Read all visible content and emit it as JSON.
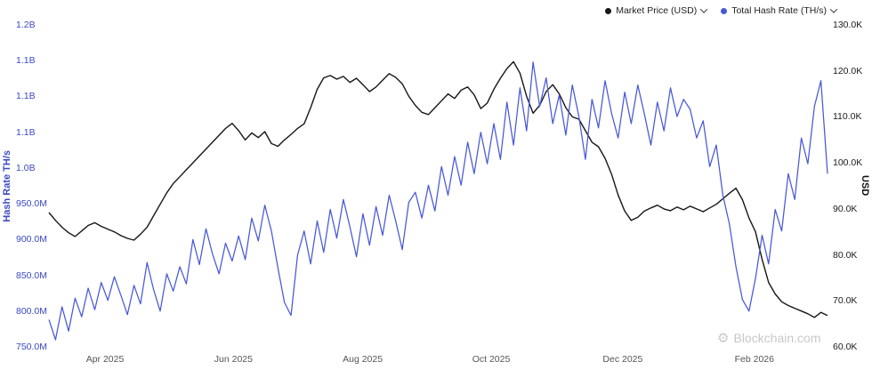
{
  "legend": {
    "market": {
      "label": "Market Price (USD)",
      "color": "#161616"
    },
    "hash": {
      "label": "Total Hash Rate (TH/s)",
      "color": "#4758d8"
    }
  },
  "watermark": {
    "icon": "⚙",
    "text": "Blockchain.com"
  },
  "chart_data": {
    "type": "line",
    "title": "",
    "grid": false,
    "legend_position": "top-right",
    "left_axis": {
      "title": "Hash Rate TH/s",
      "unit": "TH/s",
      "range": [
        750,
        1200
      ],
      "ticks": [
        {
          "label": "1.2B",
          "value": 1200
        },
        {
          "label": "1.1B",
          "value": 1150
        },
        {
          "label": "1.1B",
          "value": 1100
        },
        {
          "label": "1.1B",
          "value": 1050
        },
        {
          "label": "1.0B",
          "value": 1000
        },
        {
          "label": "950.0M",
          "value": 950
        },
        {
          "label": "900.0M",
          "value": 900
        },
        {
          "label": "850.0M",
          "value": 850
        },
        {
          "label": "800.0M",
          "value": 800
        },
        {
          "label": "750.0M",
          "value": 750
        }
      ]
    },
    "right_axis": {
      "title": "USD",
      "unit": "USD",
      "range": [
        60,
        130
      ],
      "ticks": [
        {
          "label": "130.0K",
          "value": 130
        },
        {
          "label": "120.0K",
          "value": 120
        },
        {
          "label": "110.0K",
          "value": 110
        },
        {
          "label": "100.0K",
          "value": 100
        },
        {
          "label": "90.0K",
          "value": 90
        },
        {
          "label": "80.0K",
          "value": 80
        },
        {
          "label": "70.0K",
          "value": 70
        },
        {
          "label": "60.0K",
          "value": 60
        }
      ]
    },
    "x_axis": {
      "start": "Mar 2025",
      "end": "Mar 2026",
      "ticks": [
        {
          "label": "Apr 2025",
          "pos": 0.072
        },
        {
          "label": "Jun 2025",
          "pos": 0.237
        },
        {
          "label": "Aug 2025",
          "pos": 0.403
        },
        {
          "label": "Oct 2025",
          "pos": 0.568
        },
        {
          "label": "Dec 2025",
          "pos": 0.737
        },
        {
          "label": "Feb 2026",
          "pos": 0.906
        }
      ]
    },
    "series": [
      {
        "name": "Market Price (USD)",
        "data_name": "market-price-line",
        "axis": "right",
        "color": "#161616",
        "width": 1.4,
        "values": [
          89.2,
          87.5,
          86.0,
          84.8,
          84.0,
          85.2,
          86.4,
          87.0,
          86.2,
          85.6,
          85.0,
          84.2,
          83.6,
          83.2,
          84.5,
          86.0,
          88.5,
          91.0,
          93.5,
          95.5,
          97.0,
          98.5,
          100.0,
          101.5,
          103.0,
          104.5,
          106.0,
          107.5,
          108.6,
          107.0,
          105.0,
          106.5,
          105.5,
          106.8,
          104.2,
          103.6,
          105.0,
          106.2,
          107.5,
          108.5,
          112.0,
          116.0,
          118.5,
          119.0,
          118.2,
          118.8,
          117.5,
          118.4,
          117.0,
          115.5,
          116.5,
          118.0,
          119.4,
          118.6,
          117.2,
          114.5,
          112.5,
          111.0,
          110.5,
          112.0,
          113.5,
          115.0,
          114.0,
          115.8,
          116.5,
          114.8,
          111.8,
          113.0,
          116.0,
          118.4,
          120.5,
          122.0,
          119.5,
          114.5,
          110.8,
          112.5,
          115.5,
          117.0,
          115.0,
          112.0,
          110.0,
          109.5,
          107.0,
          104.5,
          103.5,
          101.0,
          97.5,
          93.0,
          89.5,
          87.5,
          88.2,
          89.5,
          90.2,
          90.8,
          90.0,
          89.6,
          90.4,
          89.8,
          90.6,
          90.0,
          89.4,
          90.2,
          91.0,
          92.2,
          93.4,
          94.5,
          92.0,
          88.0,
          85.0,
          79.0,
          74.0,
          71.5,
          69.8,
          69.0,
          68.4,
          67.8,
          67.2,
          66.4,
          67.5,
          66.8
        ]
      },
      {
        "name": "Total Hash Rate (TH/s)",
        "data_name": "hash-rate-line",
        "axis": "left",
        "color": "#4758d8",
        "width": 1.25,
        "values": [
          788,
          760,
          806,
          772,
          818,
          792,
          832,
          802,
          840,
          815,
          848,
          822,
          795,
          836,
          810,
          868,
          830,
          800,
          852,
          828,
          862,
          838,
          900,
          865,
          915,
          880,
          852,
          895,
          870,
          905,
          872,
          930,
          898,
          948,
          912,
          860,
          812,
          794,
          878,
          912,
          866,
          926,
          882,
          942,
          902,
          956,
          918,
          876,
          936,
          892,
          946,
          906,
          962,
          926,
          886,
          952,
          966,
          930,
          976,
          940,
          1002,
          962,
          1016,
          976,
          1036,
          992,
          1050,
          1006,
          1062,
          1012,
          1092,
          1032,
          1112,
          1052,
          1148,
          1086,
          1126,
          1062,
          1102,
          1046,
          1116,
          1072,
          1012,
          1096,
          1056,
          1122,
          1076,
          1042,
          1106,
          1062,
          1116,
          1076,
          1032,
          1092,
          1052,
          1112,
          1072,
          1096,
          1082,
          1042,
          1066,
          1002,
          1032,
          962,
          922,
          862,
          816,
          800,
          846,
          906,
          866,
          942,
          912,
          992,
          956,
          1042,
          1006,
          1086,
          1122,
          992
        ]
      }
    ]
  }
}
